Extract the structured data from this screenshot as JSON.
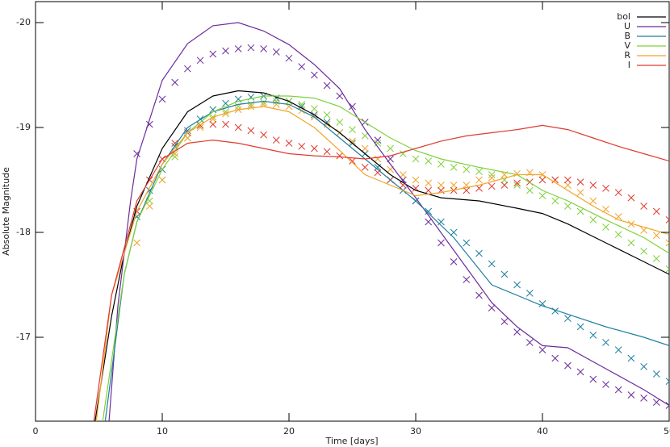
{
  "chart_data": {
    "type": "line",
    "x_label": "Time [days]",
    "y_label": "Absolute Magnitude",
    "xlim": [
      0,
      50
    ],
    "ylim": [
      -16.2,
      -20.2
    ],
    "xticks": [
      0,
      10,
      20,
      30,
      40,
      50
    ],
    "yticks": [
      -20,
      -19,
      -18,
      -17
    ],
    "legend": "upper right",
    "series": [
      {
        "name": "bol",
        "color": "#000000",
        "x": [
          4.7,
          6,
          7,
          8,
          10,
          12,
          14,
          16,
          18,
          20,
          22,
          24,
          26,
          28,
          30,
          32,
          35,
          38,
          40,
          42,
          45,
          48,
          50
        ],
        "values": [
          -16.2,
          -17.2,
          -17.8,
          -18.25,
          -18.8,
          -19.15,
          -19.3,
          -19.35,
          -19.33,
          -19.25,
          -19.12,
          -18.95,
          -18.75,
          -18.55,
          -18.4,
          -18.33,
          -18.3,
          -18.23,
          -18.18,
          -18.08,
          -17.9,
          -17.72,
          -17.6
        ]
      },
      {
        "name": "U",
        "color": "#6a2c9c",
        "x": [
          5.8,
          6.5,
          7.5,
          8,
          10,
          12,
          14,
          16,
          18,
          20,
          22,
          24,
          26,
          28,
          30,
          33,
          36,
          38,
          40,
          42,
          45,
          48,
          50
        ],
        "values": [
          -16.2,
          -17.3,
          -18.3,
          -18.7,
          -19.45,
          -19.8,
          -19.97,
          -20.0,
          -19.92,
          -19.79,
          -19.6,
          -19.37,
          -18.98,
          -18.65,
          -18.33,
          -17.83,
          -17.33,
          -17.1,
          -16.92,
          -16.9,
          -16.7,
          -16.5,
          -16.35
        ]
      },
      {
        "name": "B",
        "color": "#1f7f9f",
        "x": [
          5.5,
          7,
          8,
          10,
          12,
          14,
          16,
          18,
          20,
          22,
          24,
          26,
          28,
          30,
          33,
          36,
          38,
          40,
          42,
          45,
          48,
          50
        ],
        "values": [
          -16.2,
          -17.6,
          -18.1,
          -18.65,
          -19.0,
          -19.15,
          -19.22,
          -19.25,
          -19.22,
          -19.1,
          -18.9,
          -18.7,
          -18.5,
          -18.3,
          -17.95,
          -17.5,
          -17.4,
          -17.3,
          -17.22,
          -17.1,
          -17.0,
          -16.92
        ]
      },
      {
        "name": "V",
        "color": "#7fd13b",
        "x": [
          5.3,
          7,
          8,
          10,
          12,
          14,
          16,
          18,
          20,
          22,
          24,
          26,
          28,
          30,
          32,
          35,
          38,
          40,
          42,
          45,
          48,
          50
        ],
        "values": [
          -16.2,
          -17.6,
          -18.1,
          -18.6,
          -18.95,
          -19.15,
          -19.25,
          -19.3,
          -19.3,
          -19.28,
          -19.2,
          -19.05,
          -18.9,
          -18.78,
          -18.7,
          -18.62,
          -18.55,
          -18.4,
          -18.3,
          -18.12,
          -17.95,
          -17.8
        ]
      },
      {
        "name": "R",
        "color": "#f2a42a",
        "x": [
          4.8,
          6,
          8,
          10,
          12,
          14,
          16,
          18,
          20,
          22,
          24,
          26,
          28,
          30,
          32,
          35,
          38,
          40,
          42,
          44,
          46,
          48,
          50
        ],
        "values": [
          -16.2,
          -17.4,
          -18.2,
          -18.65,
          -18.95,
          -19.1,
          -19.17,
          -19.2,
          -19.15,
          -19.0,
          -18.78,
          -18.55,
          -18.45,
          -18.35,
          -18.38,
          -18.45,
          -18.55,
          -18.55,
          -18.4,
          -18.25,
          -18.12,
          -18.05,
          -17.98
        ]
      },
      {
        "name": "I",
        "color": "#e03a2f",
        "x": [
          4.6,
          6,
          8,
          10,
          12,
          14,
          16,
          18,
          20,
          22,
          24,
          26,
          28,
          30,
          32,
          34,
          36,
          38,
          40,
          42,
          44,
          46,
          48,
          50
        ],
        "values": [
          -16.2,
          -17.4,
          -18.3,
          -18.7,
          -18.85,
          -18.88,
          -18.85,
          -18.8,
          -18.75,
          -18.73,
          -18.72,
          -18.7,
          -18.73,
          -18.8,
          -18.87,
          -18.92,
          -18.95,
          -18.98,
          -19.02,
          -18.98,
          -18.9,
          -18.82,
          -18.75,
          -18.68
        ]
      }
    ],
    "markers": [
      {
        "color": "#6a2c9c",
        "x": [
          8,
          9,
          10,
          11,
          12,
          13,
          14,
          15,
          16,
          17,
          18,
          19,
          20,
          21,
          22,
          23,
          24,
          25,
          26,
          27,
          28,
          29,
          30,
          31,
          32,
          33,
          34,
          35,
          36,
          37,
          38,
          39,
          40,
          41,
          42,
          43,
          44,
          45,
          46,
          47,
          48,
          49,
          50
        ],
        "values": [
          -18.75,
          -19.03,
          -19.27,
          -19.43,
          -19.56,
          -19.64,
          -19.7,
          -19.73,
          -19.75,
          -19.76,
          -19.75,
          -19.72,
          -19.66,
          -19.58,
          -19.5,
          -19.4,
          -19.3,
          -19.2,
          -19.05,
          -18.88,
          -18.7,
          -18.5,
          -18.3,
          -18.1,
          -17.9,
          -17.72,
          -17.55,
          -17.4,
          -17.28,
          -17.15,
          -17.05,
          -16.95,
          -16.88,
          -16.8,
          -16.73,
          -16.67,
          -16.6,
          -16.55,
          -16.5,
          -16.45,
          -16.42,
          -16.38,
          -16.35
        ]
      },
      {
        "color": "#1f7f9f",
        "x": [
          8,
          9,
          10,
          11,
          12,
          13,
          14,
          15,
          16,
          17,
          18,
          19,
          20,
          21,
          22,
          23,
          24,
          25,
          26,
          27,
          28,
          29,
          30,
          31,
          32,
          33,
          34,
          35,
          36,
          37,
          38,
          39,
          40,
          41,
          42,
          43,
          44,
          45,
          46,
          47,
          48,
          49,
          50
        ],
        "values": [
          -18.15,
          -18.4,
          -18.6,
          -18.82,
          -18.97,
          -19.08,
          -19.17,
          -19.23,
          -19.27,
          -19.29,
          -19.3,
          -19.28,
          -19.25,
          -19.2,
          -19.12,
          -19.05,
          -18.95,
          -18.85,
          -18.75,
          -18.62,
          -18.5,
          -18.4,
          -18.3,
          -18.2,
          -18.1,
          -18.0,
          -17.9,
          -17.8,
          -17.7,
          -17.6,
          -17.5,
          -17.42,
          -17.32,
          -17.25,
          -17.18,
          -17.1,
          -17.02,
          -16.95,
          -16.88,
          -16.8,
          -16.72,
          -16.65,
          -16.58
        ]
      },
      {
        "color": "#7fd13b",
        "x": [
          9,
          10,
          11,
          12,
          13,
          14,
          15,
          16,
          17,
          18,
          19,
          20,
          21,
          22,
          23,
          24,
          25,
          26,
          27,
          28,
          29,
          30,
          31,
          32,
          33,
          34,
          35,
          36,
          37,
          38,
          39,
          40,
          41,
          42,
          43,
          44,
          45,
          46,
          47,
          48,
          49,
          50
        ],
        "values": [
          -18.3,
          -18.5,
          -18.72,
          -18.9,
          -19.02,
          -19.1,
          -19.15,
          -19.2,
          -19.22,
          -19.24,
          -19.25,
          -19.25,
          -19.22,
          -19.18,
          -19.12,
          -19.05,
          -18.98,
          -18.92,
          -18.85,
          -18.8,
          -18.75,
          -18.7,
          -18.68,
          -18.65,
          -18.62,
          -18.6,
          -18.58,
          -18.55,
          -18.5,
          -18.45,
          -18.4,
          -18.35,
          -18.3,
          -18.25,
          -18.2,
          -18.12,
          -18.05,
          -17.98,
          -17.9,
          -17.82,
          -17.75,
          -17.65
        ]
      },
      {
        "color": "#f2a42a",
        "x": [
          8,
          9,
          10,
          11,
          12,
          13,
          14,
          15,
          16,
          17,
          18,
          19,
          20,
          21,
          22,
          23,
          24,
          25,
          26,
          27,
          28,
          29,
          30,
          31,
          32,
          33,
          34,
          35,
          36,
          37,
          38,
          39,
          40,
          41,
          42,
          43,
          44,
          45,
          46,
          47,
          48,
          49,
          50
        ],
        "values": [
          -17.9,
          -18.25,
          -18.5,
          -18.75,
          -18.9,
          -19.0,
          -19.08,
          -19.13,
          -19.17,
          -19.2,
          -19.22,
          -19.22,
          -19.2,
          -19.16,
          -19.1,
          -19.03,
          -18.95,
          -18.87,
          -18.8,
          -18.7,
          -18.6,
          -18.55,
          -18.5,
          -18.47,
          -18.45,
          -18.45,
          -18.45,
          -18.5,
          -18.52,
          -18.55,
          -18.56,
          -18.57,
          -18.55,
          -18.5,
          -18.45,
          -18.38,
          -18.3,
          -18.22,
          -18.15,
          -18.08,
          -18.02,
          -17.97,
          -17.9
        ]
      },
      {
        "color": "#e03a2f",
        "x": [
          8,
          9,
          10,
          11,
          12,
          13,
          14,
          15,
          16,
          17,
          18,
          19,
          20,
          21,
          22,
          23,
          24,
          25,
          26,
          27,
          28,
          29,
          30,
          31,
          32,
          33,
          34,
          35,
          36,
          37,
          38,
          39,
          40,
          41,
          42,
          43,
          44,
          45,
          46,
          47,
          48,
          49,
          50
        ],
        "values": [
          -18.2,
          -18.5,
          -18.7,
          -18.85,
          -18.95,
          -19.02,
          -19.03,
          -19.03,
          -19.0,
          -18.97,
          -18.93,
          -18.88,
          -18.85,
          -18.82,
          -18.8,
          -18.77,
          -18.73,
          -18.68,
          -18.62,
          -18.57,
          -18.5,
          -18.45,
          -18.42,
          -18.4,
          -18.4,
          -18.4,
          -18.4,
          -18.42,
          -18.44,
          -18.45,
          -18.47,
          -18.48,
          -18.5,
          -18.5,
          -18.5,
          -18.48,
          -18.45,
          -18.42,
          -18.38,
          -18.33,
          -18.25,
          -18.2,
          -18.12
        ]
      }
    ]
  }
}
